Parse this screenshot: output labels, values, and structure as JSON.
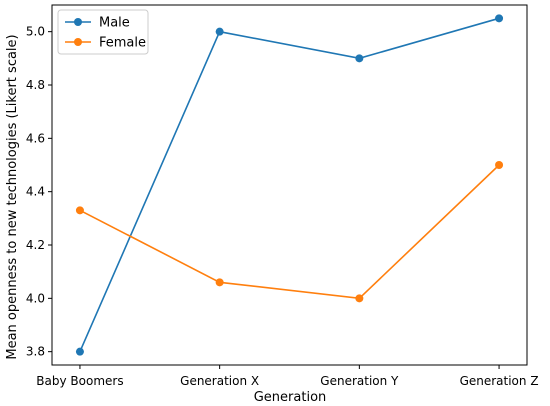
{
  "chart_data": {
    "type": "line",
    "categories": [
      "Baby Boomers",
      "Generation X",
      "Generation Y",
      "Generation Z"
    ],
    "series": [
      {
        "name": "Male",
        "values": [
          3.8,
          5.0,
          4.9,
          5.05
        ],
        "color": "#1f77b4"
      },
      {
        "name": "Female",
        "values": [
          4.33,
          4.06,
          4.0,
          4.5
        ],
        "color": "#ff7f0e"
      }
    ],
    "xlabel": "Generation",
    "ylabel": "Mean openness to new technologies (Likert scale)",
    "ylim": [
      3.75,
      5.1
    ],
    "yticks": [
      "3.8",
      "4.0",
      "4.2",
      "4.4",
      "4.6",
      "4.8",
      "5.0"
    ],
    "grid": false,
    "legend": "upper-left"
  }
}
